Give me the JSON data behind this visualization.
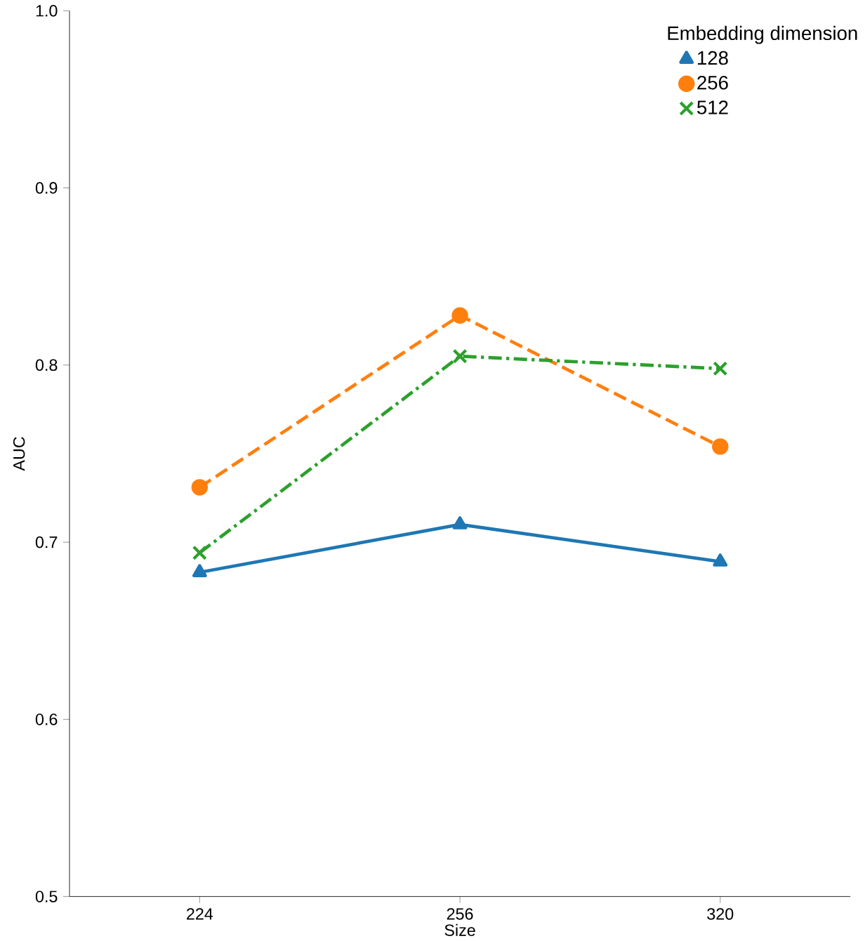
{
  "chart_data": {
    "type": "line",
    "xlabel": "Size",
    "ylabel": "AUC",
    "legend_title": "Embedding dimension",
    "categories": [
      "224",
      "256",
      "320"
    ],
    "series": [
      {
        "name": "128",
        "color": "#1f77b4",
        "values": [
          0.683,
          0.71,
          0.689
        ],
        "marker": "triangle",
        "line_style": "solid"
      },
      {
        "name": "256",
        "color": "#ff7f0e",
        "values": [
          0.731,
          0.828,
          0.754
        ],
        "marker": "circle",
        "line_style": "dashed"
      },
      {
        "name": "512",
        "color": "#2ca02c",
        "values": [
          0.694,
          0.805,
          0.798
        ],
        "marker": "cross",
        "line_style": "dashdot"
      }
    ],
    "ylim": [
      0.5,
      1.0
    ],
    "yticks": [
      0.5,
      0.6,
      0.7,
      0.8,
      0.9,
      {
        "value": 1.0,
        "label": "1.0"
      }
    ],
    "grid": false,
    "legend": "top right"
  }
}
